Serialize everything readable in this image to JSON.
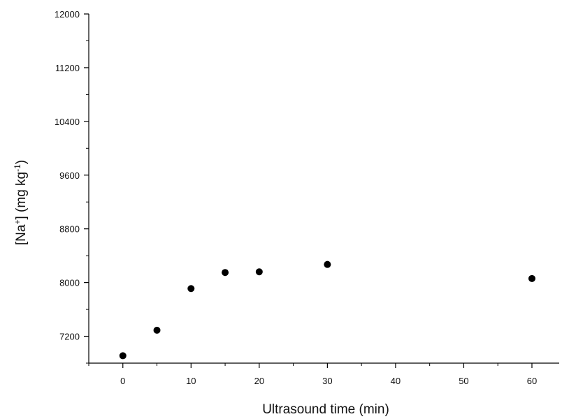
{
  "chart_data": {
    "type": "scatter",
    "title": "",
    "xlabel": "Ultrasound time (min)",
    "ylabel": "[Na+] (mg kg-1)",
    "ylabel_parts": {
      "open": "[Na",
      "sup1": "+",
      "mid": "] (mg kg",
      "sup2": "-1",
      "close": ")"
    },
    "xlim": [
      -5,
      64
    ],
    "ylim": [
      6800,
      12000
    ],
    "x_ticks": [
      0,
      10,
      20,
      30,
      40,
      50,
      60
    ],
    "y_ticks": [
      7200,
      8000,
      8800,
      9600,
      10400,
      11200,
      12000
    ],
    "grid": false,
    "legend": "none",
    "marker_color": "#000000",
    "series": [
      {
        "x": [
          0,
          5,
          10,
          15,
          20,
          30,
          60
        ],
        "y": [
          6910,
          7290,
          7910,
          8150,
          8160,
          8270,
          8060
        ]
      }
    ]
  }
}
